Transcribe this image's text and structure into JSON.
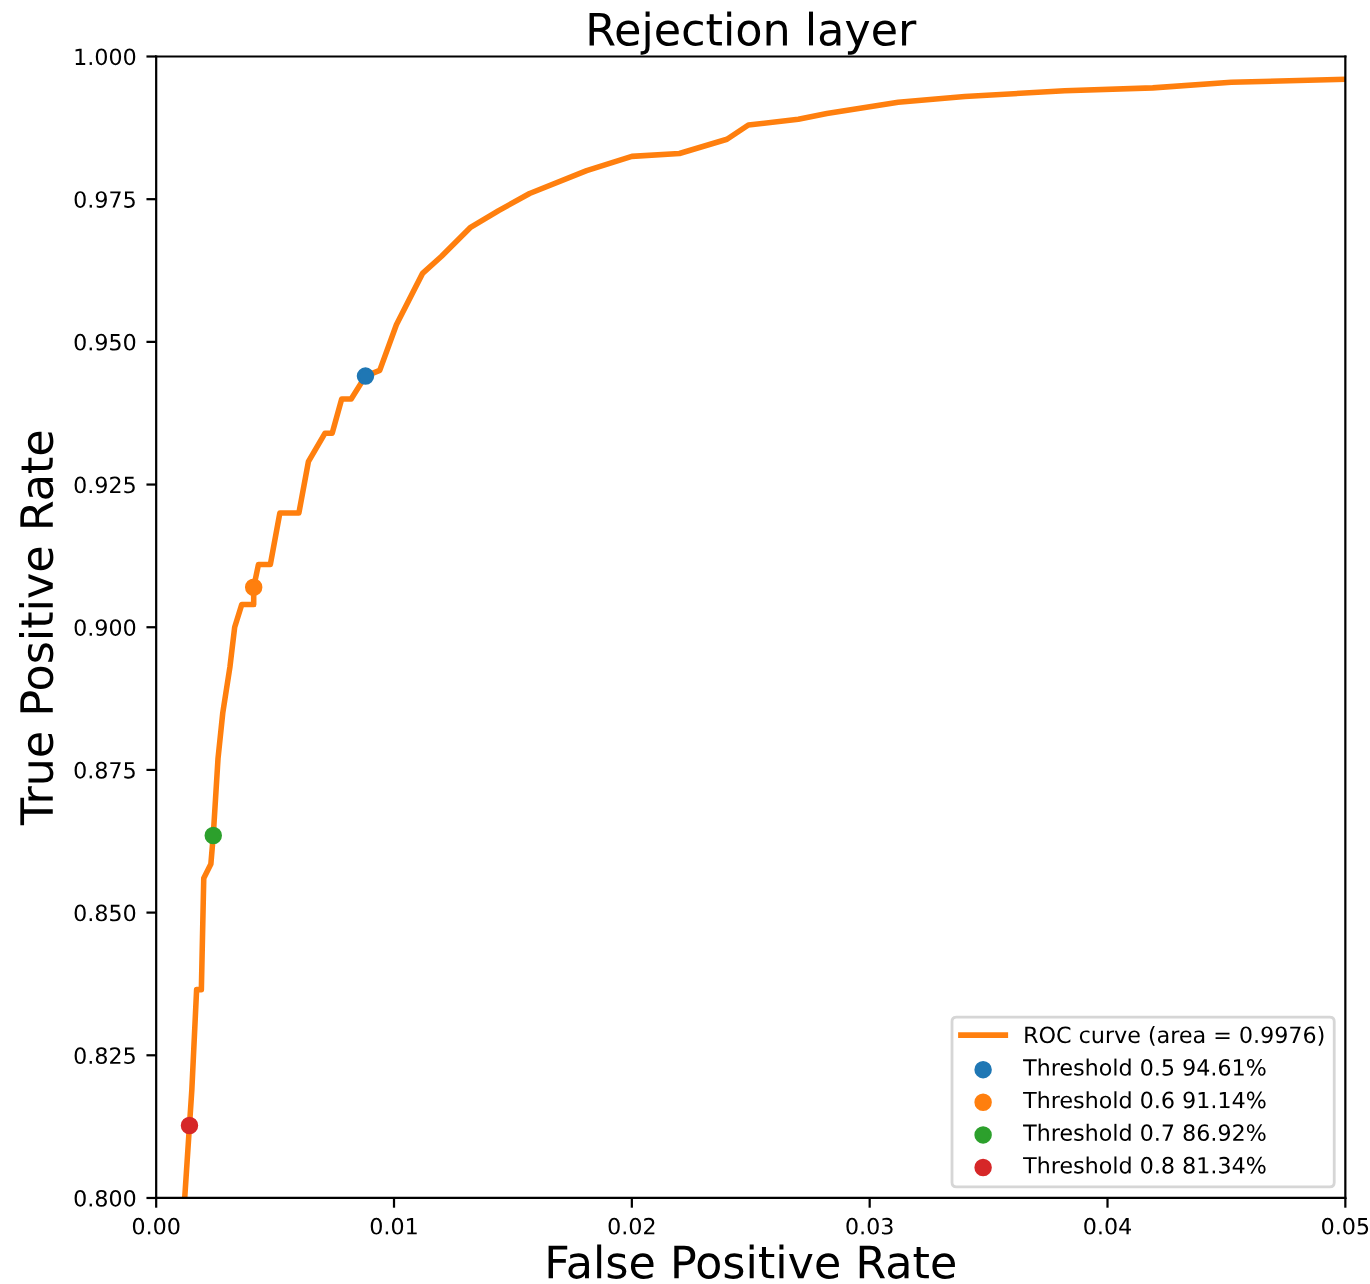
{
  "chart_data": {
    "type": "line",
    "title": "Rejection layer",
    "xlabel": "False Positive Rate",
    "ylabel": "True Positive Rate",
    "xlim": [
      0,
      0.05
    ],
    "ylim": [
      0.8,
      1.0
    ],
    "xticks": [
      {
        "value": 0,
        "label": "0.00"
      },
      {
        "value": 0.01,
        "label": "0.01"
      },
      {
        "value": 0.02,
        "label": "0.02"
      },
      {
        "value": 0.03,
        "label": "0.03"
      },
      {
        "value": 0.04,
        "label": "0.04"
      },
      {
        "value": 0.05,
        "label": "0.05"
      }
    ],
    "yticks": [
      {
        "value": 0.8,
        "label": "0.800"
      },
      {
        "value": 0.825,
        "label": "0.825"
      },
      {
        "value": 0.85,
        "label": "0.850"
      },
      {
        "value": 0.875,
        "label": "0.875"
      },
      {
        "value": 0.9,
        "label": "0.900"
      },
      {
        "value": 0.925,
        "label": "0.925"
      },
      {
        "value": 0.95,
        "label": "0.950"
      },
      {
        "value": 0.975,
        "label": "0.975"
      },
      {
        "value": 1.0,
        "label": "1.000"
      }
    ],
    "grid": false,
    "legend": "bottom right",
    "series": [
      {
        "name": "ROC curve (area = 0.9976)",
        "color": "#ff7f0e",
        "marker": "none",
        "line_style": "solid",
        "x": [
          0.0012,
          0.0014,
          0.0015,
          0.0017,
          0.0019,
          0.002,
          0.0023,
          0.0024,
          0.0026,
          0.0028,
          0.0031,
          0.0033,
          0.0036,
          0.0041,
          0.0041,
          0.0043,
          0.0048,
          0.0052,
          0.006,
          0.0064,
          0.0071,
          0.0074,
          0.0078,
          0.0082,
          0.0088,
          0.0094,
          0.0101,
          0.0112,
          0.012,
          0.0132,
          0.0144,
          0.0157,
          0.0181,
          0.02,
          0.022,
          0.024,
          0.0249,
          0.027,
          0.0282,
          0.0312,
          0.034,
          0.0382,
          0.0419,
          0.0452,
          0.05
        ],
        "values": [
          0.8,
          0.8127,
          0.819,
          0.8365,
          0.8365,
          0.856,
          0.8585,
          0.8635,
          0.877,
          0.885,
          0.893,
          0.9,
          0.904,
          0.904,
          0.907,
          0.911,
          0.911,
          0.92,
          0.92,
          0.929,
          0.934,
          0.934,
          0.94,
          0.94,
          0.944,
          0.945,
          0.953,
          0.962,
          0.965,
          0.97,
          0.973,
          0.976,
          0.98,
          0.9825,
          0.983,
          0.9855,
          0.988,
          0.989,
          0.99,
          0.992,
          0.993,
          0.994,
          0.9945,
          0.9955,
          0.996
        ]
      },
      {
        "name": "Threshold 0.5 94.61%",
        "color": "#1f77b4",
        "type": "scatter",
        "marker": "circle",
        "x": [
          0.0088
        ],
        "values": [
          0.944
        ]
      },
      {
        "name": "Threshold 0.6 91.14%",
        "color": "#ff7f0e",
        "type": "scatter",
        "marker": "circle",
        "x": [
          0.0041
        ],
        "values": [
          0.907
        ]
      },
      {
        "name": "Threshold 0.7 86.92%",
        "color": "#2ca02c",
        "type": "scatter",
        "marker": "circle",
        "x": [
          0.0024
        ],
        "values": [
          0.8635
        ]
      },
      {
        "name": "Threshold 0.8 81.34%",
        "color": "#d62728",
        "type": "scatter",
        "marker": "circle",
        "x": [
          0.0014
        ],
        "values": [
          0.8127
        ]
      }
    ]
  }
}
